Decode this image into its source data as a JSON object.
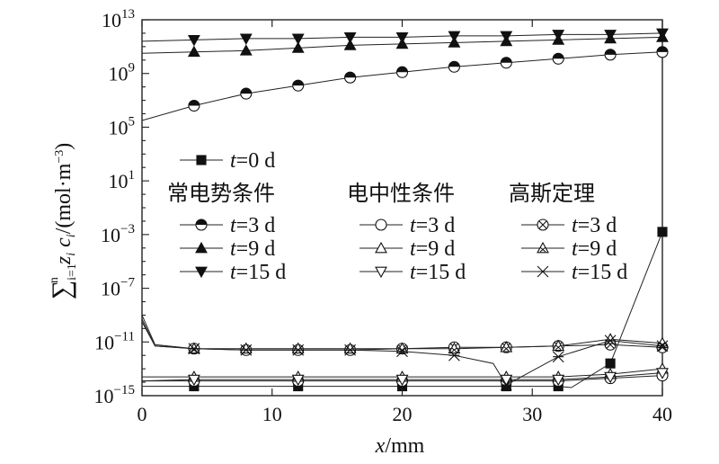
{
  "chart_data": {
    "type": "line",
    "title": "",
    "xlabel": "x/mm",
    "ylabel": "∑ i=1..n z_i c_i /(mol·m⁻³)",
    "xlim": [
      0,
      40
    ],
    "ylim_log10": [
      -15,
      13
    ],
    "y_scale": "log",
    "x_ticks": [
      0,
      10,
      20,
      30,
      40
    ],
    "y_ticks": [
      {
        "exp": 13,
        "label": "10^13"
      },
      {
        "exp": 9,
        "label": "10^9"
      },
      {
        "exp": 5,
        "label": "10^5"
      },
      {
        "exp": 1,
        "label": "10^1"
      },
      {
        "exp": -3,
        "label": "10^-3"
      },
      {
        "exp": -7,
        "label": "10^-7"
      },
      {
        "exp": -11,
        "label": "10^-11"
      },
      {
        "exp": -15,
        "label": "10^-15"
      }
    ],
    "legend_groups": [
      "常电势条件",
      "电中性条件",
      "高斯定理"
    ],
    "series": [
      {
        "name": "t=0 d",
        "group": "",
        "marker": "square-filled",
        "log10_y": [
          [
            0,
            -14.3
          ],
          [
            4,
            -14.3
          ],
          [
            12,
            -14.3
          ],
          [
            20,
            -14.3
          ],
          [
            28,
            -14.3
          ],
          [
            32,
            -14.3
          ],
          [
            33,
            -14.4
          ],
          [
            36,
            -12.6
          ],
          [
            40,
            -2.8
          ]
        ]
      },
      {
        "name": "t=3 d",
        "group": "常电势条件",
        "marker": "circle-half",
        "log10_y": [
          [
            0,
            5.5
          ],
          [
            4,
            6.6
          ],
          [
            8,
            7.5
          ],
          [
            12,
            8.1
          ],
          [
            16,
            8.7
          ],
          [
            20,
            9.1
          ],
          [
            24,
            9.5
          ],
          [
            28,
            9.8
          ],
          [
            32,
            10.1
          ],
          [
            36,
            10.4
          ],
          [
            40,
            10.6
          ]
        ]
      },
      {
        "name": "t=9 d",
        "group": "常电势条件",
        "marker": "triangle-up-filled",
        "log10_y": [
          [
            0,
            10.5
          ],
          [
            4,
            10.6
          ],
          [
            8,
            10.7
          ],
          [
            12,
            10.9
          ],
          [
            16,
            11.1
          ],
          [
            20,
            11.2
          ],
          [
            24,
            11.3
          ],
          [
            28,
            11.4
          ],
          [
            32,
            11.5
          ],
          [
            36,
            11.6
          ],
          [
            40,
            11.7
          ]
        ]
      },
      {
        "name": "t=15 d",
        "group": "常电势条件",
        "marker": "triangle-down-filled",
        "log10_y": [
          [
            0,
            11.4
          ],
          [
            4,
            11.5
          ],
          [
            8,
            11.6
          ],
          [
            12,
            11.6
          ],
          [
            16,
            11.7
          ],
          [
            20,
            11.7
          ],
          [
            24,
            11.8
          ],
          [
            28,
            11.8
          ],
          [
            32,
            11.9
          ],
          [
            36,
            11.9
          ],
          [
            40,
            12.0
          ]
        ]
      },
      {
        "name": "t=3 d",
        "group": "电中性条件",
        "marker": "circle-open",
        "log10_y": [
          [
            0,
            -13.9
          ],
          [
            4,
            -13.9
          ],
          [
            12,
            -13.9
          ],
          [
            20,
            -13.9
          ],
          [
            28,
            -13.9
          ],
          [
            32,
            -13.9
          ],
          [
            36,
            -13.7
          ],
          [
            40,
            -13.5
          ]
        ]
      },
      {
        "name": "t=9 d",
        "group": "电中性条件",
        "marker": "triangle-up-open",
        "log10_y": [
          [
            0,
            -13.6
          ],
          [
            4,
            -13.6
          ],
          [
            12,
            -13.6
          ],
          [
            20,
            -13.6
          ],
          [
            28,
            -13.6
          ],
          [
            32,
            -13.6
          ],
          [
            36,
            -13.4
          ],
          [
            40,
            -13.0
          ]
        ]
      },
      {
        "name": "t=15 d",
        "group": "电中性条件",
        "marker": "triangle-down-open",
        "log10_y": [
          [
            0,
            -13.9
          ],
          [
            4,
            -13.8
          ],
          [
            12,
            -13.8
          ],
          [
            20,
            -13.8
          ],
          [
            28,
            -13.8
          ],
          [
            32,
            -13.8
          ],
          [
            36,
            -13.6
          ],
          [
            40,
            -13.3
          ]
        ]
      },
      {
        "name": "t=3 d",
        "group": "高斯定理",
        "marker": "circle-x",
        "log10_y": [
          [
            0,
            -9.0
          ],
          [
            1,
            -11.2
          ],
          [
            4,
            -11.5
          ],
          [
            8,
            -11.6
          ],
          [
            12,
            -11.6
          ],
          [
            16,
            -11.6
          ],
          [
            20,
            -11.5
          ],
          [
            24,
            -11.4
          ],
          [
            28,
            -11.4
          ],
          [
            32,
            -11.3
          ],
          [
            36,
            -11.2
          ],
          [
            40,
            -11.4
          ]
        ]
      },
      {
        "name": "t=9 d",
        "group": "高斯定理",
        "marker": "triangle-x",
        "log10_y": [
          [
            0,
            -9.3
          ],
          [
            1,
            -11.3
          ],
          [
            4,
            -11.5
          ],
          [
            8,
            -11.5
          ],
          [
            12,
            -11.5
          ],
          [
            16,
            -11.5
          ],
          [
            20,
            -11.5
          ],
          [
            24,
            -11.5
          ],
          [
            28,
            -11.4
          ],
          [
            32,
            -11.3
          ],
          [
            36,
            -10.8
          ],
          [
            40,
            -11.1
          ]
        ]
      },
      {
        "name": "t=15 d",
        "group": "高斯定理",
        "marker": "star-x",
        "log10_y": [
          [
            0,
            -9.5
          ],
          [
            1,
            -11.3
          ],
          [
            4,
            -11.5
          ],
          [
            8,
            -11.6
          ],
          [
            12,
            -11.6
          ],
          [
            16,
            -11.6
          ],
          [
            20,
            -11.7
          ],
          [
            24,
            -12.0
          ],
          [
            27,
            -12.6
          ],
          [
            28,
            -14.2
          ],
          [
            32,
            -12.1
          ],
          [
            36,
            -10.9
          ],
          [
            40,
            -11.3
          ]
        ]
      }
    ]
  }
}
